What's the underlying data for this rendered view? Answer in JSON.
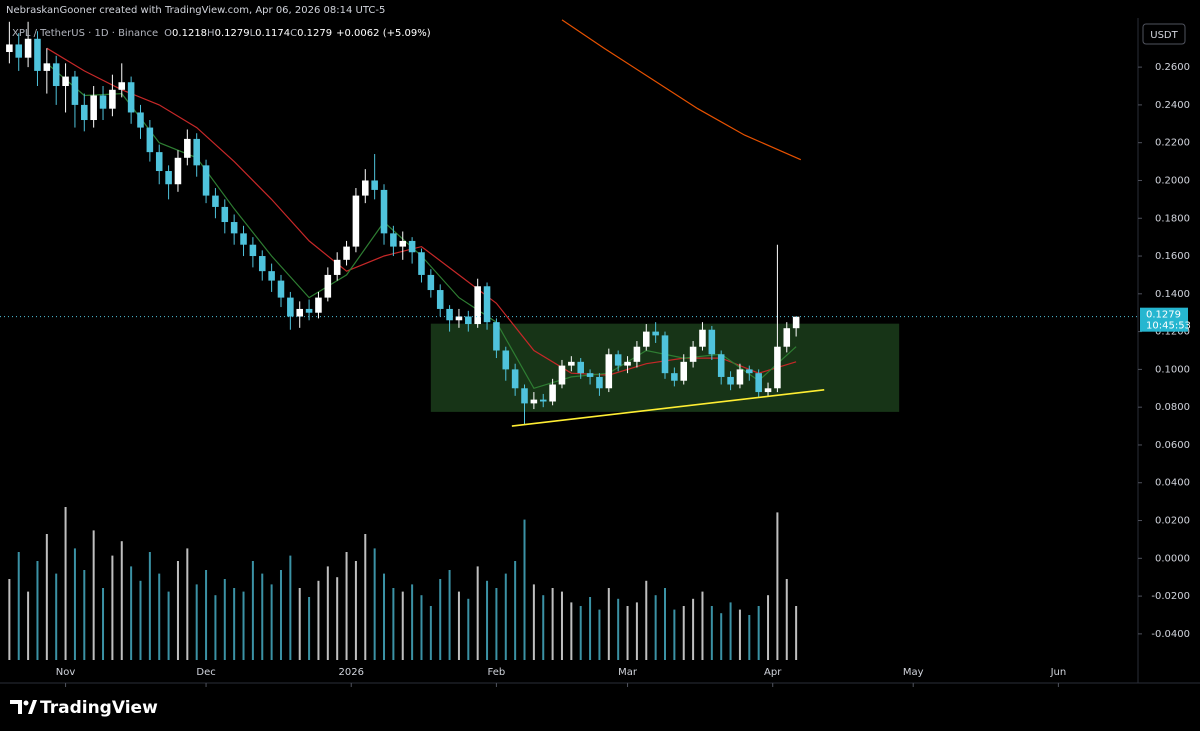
{
  "credit": "NebraskanGooner created with TradingView.com, Apr 06, 2026 08:14 UTC-5",
  "branding": "TradingView",
  "chart_data": {
    "type": "candlestick",
    "symbol": "XPL / TetherUS · 1D · Binance",
    "ohlc_letters": [
      "O",
      "H",
      "L",
      "C"
    ],
    "change_label": "+0.0062 (+5.09%)",
    "currency": "USDT",
    "countdown": "10:45:53",
    "up_color": "#ffffff",
    "down_color": "#4fc3dc",
    "x": [
      -12,
      -10,
      -8,
      -6,
      -4,
      -2,
      0,
      2,
      4,
      6,
      8,
      10,
      12,
      14,
      16,
      18,
      20,
      22,
      24,
      26,
      28,
      30,
      32,
      34,
      36,
      38,
      40,
      42,
      44,
      46,
      48,
      50,
      52,
      54,
      56,
      58,
      60,
      62,
      64,
      66,
      68,
      70,
      72,
      74,
      76,
      78,
      80,
      82,
      84,
      86,
      88,
      90,
      92,
      94,
      96,
      98,
      100,
      102,
      104,
      106,
      108,
      110,
      112,
      114,
      116,
      118,
      120,
      122,
      124,
      126,
      128,
      130,
      132,
      134,
      136,
      138,
      140,
      142,
      144,
      146,
      148,
      150,
      152,
      154,
      156
    ],
    "open": [
      0.268,
      0.272,
      0.265,
      0.275,
      0.258,
      0.262,
      0.25,
      0.255,
      0.24,
      0.232,
      0.245,
      0.238,
      0.248,
      0.252,
      0.236,
      0.228,
      0.215,
      0.205,
      0.198,
      0.212,
      0.222,
      0.208,
      0.192,
      0.186,
      0.178,
      0.172,
      0.166,
      0.16,
      0.152,
      0.147,
      0.138,
      0.128,
      0.132,
      0.13,
      0.138,
      0.15,
      0.158,
      0.165,
      0.192,
      0.2,
      0.195,
      0.172,
      0.165,
      0.168,
      0.162,
      0.15,
      0.142,
      0.132,
      0.126,
      0.128,
      0.124,
      0.144,
      0.125,
      0.11,
      0.1,
      0.09,
      0.082,
      0.084,
      0.083,
      0.092,
      0.102,
      0.104,
      0.098,
      0.096,
      0.09,
      0.108,
      0.102,
      0.104,
      0.112,
      0.12,
      0.118,
      0.098,
      0.094,
      0.104,
      0.112,
      0.121,
      0.108,
      0.096,
      0.092,
      0.1,
      0.098,
      0.088,
      0.09,
      0.112,
      0.1218
    ],
    "high": [
      0.284,
      0.278,
      0.284,
      0.279,
      0.27,
      0.266,
      0.262,
      0.258,
      0.246,
      0.25,
      0.25,
      0.256,
      0.262,
      0.255,
      0.24,
      0.232,
      0.219,
      0.208,
      0.216,
      0.227,
      0.225,
      0.211,
      0.196,
      0.19,
      0.182,
      0.176,
      0.17,
      0.163,
      0.156,
      0.15,
      0.141,
      0.136,
      0.137,
      0.141,
      0.154,
      0.162,
      0.168,
      0.196,
      0.206,
      0.214,
      0.198,
      0.176,
      0.173,
      0.17,
      0.164,
      0.153,
      0.145,
      0.134,
      0.132,
      0.131,
      0.148,
      0.146,
      0.127,
      0.112,
      0.103,
      0.092,
      0.088,
      0.087,
      0.095,
      0.105,
      0.107,
      0.106,
      0.1,
      0.098,
      0.111,
      0.11,
      0.107,
      0.115,
      0.124,
      0.125,
      0.12,
      0.101,
      0.108,
      0.115,
      0.125,
      0.123,
      0.11,
      0.099,
      0.103,
      0.102,
      0.1,
      0.093,
      0.166,
      0.125,
      0.1279
    ],
    "low": [
      0.262,
      0.258,
      0.26,
      0.25,
      0.246,
      0.24,
      0.236,
      0.228,
      0.226,
      0.228,
      0.232,
      0.234,
      0.244,
      0.23,
      0.222,
      0.21,
      0.198,
      0.19,
      0.194,
      0.208,
      0.202,
      0.188,
      0.18,
      0.172,
      0.166,
      0.16,
      0.154,
      0.147,
      0.141,
      0.133,
      0.121,
      0.122,
      0.126,
      0.127,
      0.136,
      0.147,
      0.155,
      0.162,
      0.188,
      0.19,
      0.166,
      0.16,
      0.158,
      0.156,
      0.146,
      0.138,
      0.128,
      0.12,
      0.122,
      0.12,
      0.122,
      0.121,
      0.106,
      0.094,
      0.086,
      0.071,
      0.079,
      0.08,
      0.081,
      0.09,
      0.099,
      0.095,
      0.092,
      0.086,
      0.088,
      0.099,
      0.098,
      0.101,
      0.11,
      0.114,
      0.095,
      0.091,
      0.092,
      0.101,
      0.11,
      0.105,
      0.092,
      0.089,
      0.09,
      0.094,
      0.085,
      0.086,
      0.088,
      0.109,
      0.1174
    ],
    "close": [
      0.272,
      0.265,
      0.275,
      0.258,
      0.262,
      0.25,
      0.255,
      0.24,
      0.232,
      0.245,
      0.238,
      0.248,
      0.252,
      0.236,
      0.228,
      0.215,
      0.205,
      0.198,
      0.212,
      0.222,
      0.208,
      0.192,
      0.186,
      0.178,
      0.172,
      0.166,
      0.16,
      0.152,
      0.147,
      0.138,
      0.128,
      0.132,
      0.13,
      0.138,
      0.15,
      0.158,
      0.165,
      0.192,
      0.2,
      0.195,
      0.172,
      0.165,
      0.168,
      0.162,
      0.15,
      0.142,
      0.132,
      0.126,
      0.128,
      0.124,
      0.144,
      0.125,
      0.11,
      0.1,
      0.09,
      0.082,
      0.084,
      0.083,
      0.092,
      0.102,
      0.104,
      0.098,
      0.096,
      0.09,
      0.108,
      0.102,
      0.104,
      0.112,
      0.12,
      0.118,
      0.098,
      0.094,
      0.104,
      0.112,
      0.121,
      0.108,
      0.096,
      0.092,
      0.1,
      0.098,
      0.088,
      0.09,
      0.112,
      0.1218,
      0.1279
    ],
    "volume": [
      45,
      60,
      38,
      55,
      70,
      48,
      85,
      62,
      50,
      72,
      40,
      58,
      66,
      52,
      44,
      60,
      48,
      38,
      55,
      62,
      42,
      50,
      36,
      45,
      40,
      38,
      55,
      48,
      42,
      50,
      58,
      40,
      35,
      44,
      52,
      46,
      60,
      55,
      70,
      62,
      48,
      40,
      38,
      42,
      36,
      30,
      45,
      50,
      38,
      34,
      52,
      44,
      40,
      48,
      55,
      78,
      42,
      36,
      40,
      38,
      32,
      30,
      35,
      28,
      40,
      34,
      30,
      32,
      44,
      36,
      40,
      28,
      30,
      34,
      38,
      30,
      26,
      32,
      28,
      25,
      30,
      36,
      82,
      45,
      30
    ],
    "volume_lim": [
      0,
      100
    ],
    "xlim": [
      -14,
      229
    ],
    "xticks": [
      {
        "value": 0,
        "label": "Nov"
      },
      {
        "value": 30,
        "label": "Dec"
      },
      {
        "value": 61,
        "label": "2026"
      },
      {
        "value": 92,
        "label": "Feb"
      },
      {
        "value": 120,
        "label": "Mar"
      },
      {
        "value": 151,
        "label": "Apr"
      },
      {
        "value": 181,
        "label": "May"
      },
      {
        "value": 212,
        "label": "Jun"
      }
    ],
    "ylim": [
      -0.066,
      0.286
    ],
    "yticks": [
      {
        "value": 0.26,
        "label": "0.2600"
      },
      {
        "value": 0.24,
        "label": "0.2400"
      },
      {
        "value": 0.22,
        "label": "0.2200"
      },
      {
        "value": 0.2,
        "label": "0.2000"
      },
      {
        "value": 0.18,
        "label": "0.1800"
      },
      {
        "value": 0.16,
        "label": "0.1600"
      },
      {
        "value": 0.14,
        "label": "0.1400"
      },
      {
        "value": 0.12,
        "label": "0.1200"
      },
      {
        "value": 0.1,
        "label": "0.1000"
      },
      {
        "value": 0.08,
        "label": "0.0800"
      },
      {
        "value": 0.06,
        "label": "0.0600"
      },
      {
        "value": 0.04,
        "label": "0.0400"
      },
      {
        "value": 0.02,
        "label": "0.0200"
      },
      {
        "value": 0,
        "label": "0.0000"
      },
      {
        "value": -0.02,
        "label": "-0.0200"
      },
      {
        "value": -0.04,
        "label": "-0.0400"
      }
    ],
    "lines": [
      {
        "color": "#c62828",
        "x": [
          -4,
          4,
          12,
          20,
          28,
          36,
          44,
          52,
          60,
          68,
          76,
          84,
          92,
          100,
          108,
          116,
          124,
          132,
          140,
          148,
          156
        ],
        "values": [
          0.27,
          0.258,
          0.248,
          0.24,
          0.228,
          0.21,
          0.19,
          0.168,
          0.152,
          0.16,
          0.165,
          0.15,
          0.135,
          0.11,
          0.098,
          0.097,
          0.103,
          0.106,
          0.106,
          0.098,
          0.104
        ]
      },
      {
        "color": "#2e7d32",
        "x": [
          -4,
          4,
          12,
          20,
          28,
          36,
          44,
          52,
          60,
          68,
          76,
          84,
          92,
          100,
          108,
          116,
          124,
          132,
          140,
          148,
          156
        ],
        "values": [
          0.262,
          0.245,
          0.246,
          0.22,
          0.212,
          0.185,
          0.16,
          0.138,
          0.15,
          0.178,
          0.16,
          0.138,
          0.125,
          0.09,
          0.096,
          0.098,
          0.11,
          0.106,
          0.108,
          0.094,
          0.112
        ]
      },
      {
        "color": "#e65100",
        "x": [
          106,
          115,
          125,
          135,
          145,
          157
        ],
        "values": [
          0.285,
          0.27,
          0.254,
          0.238,
          0.224,
          0.211
        ]
      }
    ],
    "zone": {
      "color": "#1b3d1b",
      "x": [
        78,
        178
      ],
      "y": [
        0.0775,
        0.1242
      ]
    },
    "trendline": {
      "color": "#ffee33",
      "x": [
        95.3,
        162
      ],
      "y": [
        0.07,
        0.0892
      ]
    }
  }
}
